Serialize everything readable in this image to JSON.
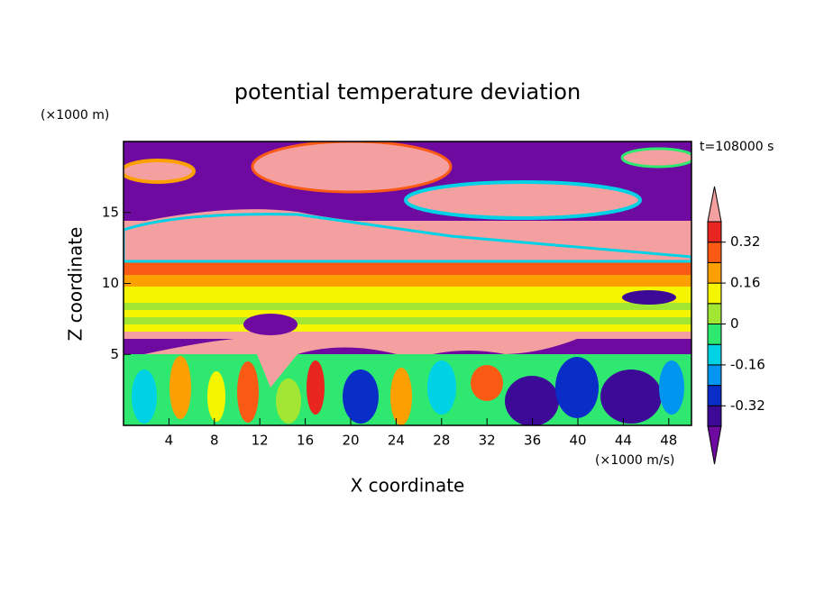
{
  "chart_data": {
    "type": "contour",
    "title": "potential temperature deviation",
    "x_label": "X coordinate",
    "y_label": "Z coordinate",
    "x_unit": "(×1000 m/s)",
    "y_unit": "(×1000 m)",
    "annotation": "t=108000 s",
    "xlim": [
      0,
      50
    ],
    "xticks": [
      4,
      8,
      12,
      16,
      20,
      24,
      28,
      32,
      36,
      40,
      44,
      48
    ],
    "ylim": [
      0,
      20
    ],
    "yticks": [
      5,
      10,
      15
    ],
    "colorbar": {
      "levels": [
        -0.4,
        -0.32,
        -0.24,
        -0.16,
        -0.08,
        0,
        0.08,
        0.16,
        0.24,
        0.32,
        0.4
      ],
      "colors": [
        "#6e0aa0",
        "#3c0a96",
        "#0a2dc8",
        "#0096f0",
        "#00d2e6",
        "#2ee870",
        "#a0e632",
        "#f5f500",
        "#fba000",
        "#fa5a14",
        "#e8261f",
        "#f5a0a0"
      ],
      "ticks": [
        -0.32,
        -0.16,
        0,
        0.16,
        0.32
      ]
    }
  }
}
